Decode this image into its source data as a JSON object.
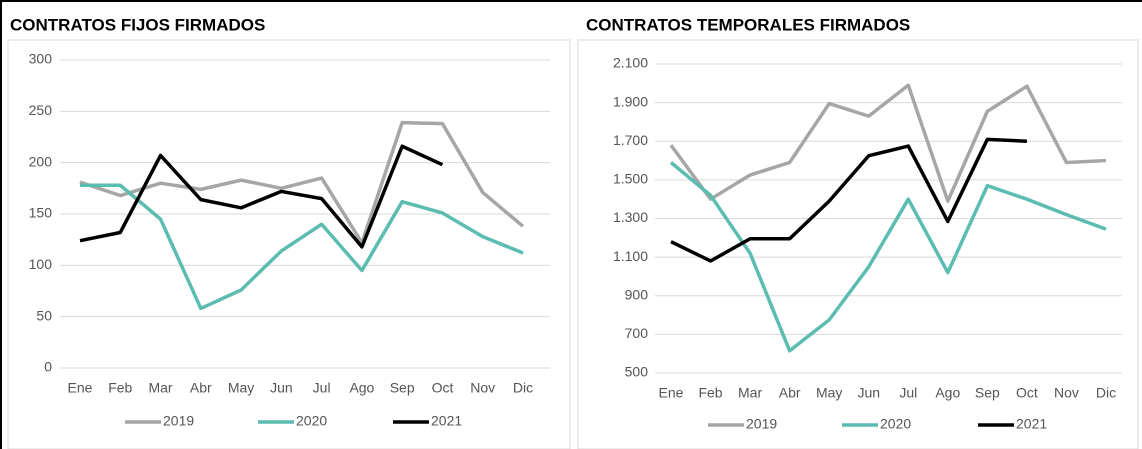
{
  "chart_data": [
    {
      "type": "line",
      "title": "CONTRATOS FIJOS FIRMADOS",
      "categories": [
        "Ene",
        "Feb",
        "Mar",
        "Abr",
        "May",
        "Jun",
        "Jul",
        "Ago",
        "Sep",
        "Oct",
        "Nov",
        "Dic"
      ],
      "series": [
        {
          "name": "2019",
          "color": "#a6a6a6",
          "values": [
            181,
            168,
            180,
            174,
            183,
            175,
            185,
            122,
            239,
            238,
            171,
            138
          ]
        },
        {
          "name": "2020",
          "color": "#5bbcb0",
          "values": [
            178,
            178,
            145,
            58,
            76,
            114,
            140,
            95,
            162,
            151,
            128,
            112
          ]
        },
        {
          "name": "2021",
          "color": "#000000",
          "values": [
            124,
            132,
            207,
            164,
            156,
            172,
            165,
            118,
            216,
            198,
            null,
            null
          ]
        }
      ],
      "ylim": [
        0,
        300
      ],
      "yticks": [
        0,
        50,
        100,
        150,
        200,
        250,
        300
      ],
      "grid": true,
      "legend": "bottom"
    },
    {
      "type": "line",
      "title": "CONTRATOS TEMPORALES FIRMADOS",
      "categories": [
        "Ene",
        "Feb",
        "Mar",
        "Abr",
        "May",
        "Jun",
        "Jul",
        "Ago",
        "Sep",
        "Oct",
        "Nov",
        "Dic"
      ],
      "series": [
        {
          "name": "2019",
          "color": "#a6a6a6",
          "values": [
            1680,
            1400,
            1525,
            1590,
            1895,
            1830,
            1990,
            1390,
            1855,
            1985,
            1590,
            1600
          ]
        },
        {
          "name": "2020",
          "color": "#5bbcb0",
          "values": [
            1590,
            1420,
            1120,
            615,
            775,
            1050,
            1400,
            1020,
            1470,
            1400,
            1320,
            1245
          ]
        },
        {
          "name": "2021",
          "color": "#000000",
          "values": [
            1180,
            1080,
            1195,
            1195,
            1390,
            1625,
            1675,
            1285,
            1710,
            1700,
            null,
            null
          ]
        }
      ],
      "ylim": [
        500,
        2100
      ],
      "yticks": [
        500,
        700,
        900,
        {
          "value": 1100,
          "label": "1.100"
        },
        {
          "value": 1300,
          "label": "1.300"
        },
        {
          "value": 1500,
          "label": "1.500"
        },
        {
          "value": 1700,
          "label": "1.700"
        },
        {
          "value": 1900,
          "label": "1.900"
        },
        {
          "value": 2100,
          "label": "2.100"
        }
      ],
      "grid": true,
      "legend": "bottom"
    }
  ]
}
